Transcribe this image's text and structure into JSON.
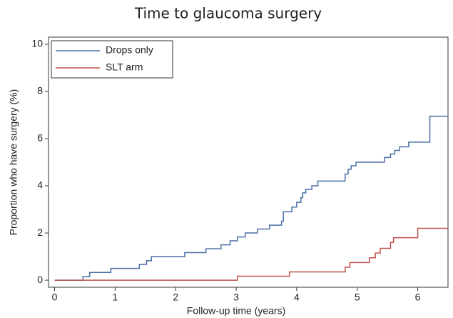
{
  "chart_data": {
    "type": "line",
    "step": true,
    "title": "Time to glaucoma surgery",
    "xlabel": "Follow-up time (years)",
    "ylabel": "Proportion who have surgery (%)",
    "xlim": [
      -0.1,
      6.5
    ],
    "ylim": [
      -0.3,
      10.3
    ],
    "xticks": [
      0,
      1,
      2,
      3,
      4,
      5,
      6
    ],
    "yticks": [
      0,
      2,
      4,
      6,
      8,
      10
    ],
    "grid": false,
    "legend": "upper left",
    "series": [
      {
        "name": "Drops only",
        "color": "#4a6fa5",
        "x": [
          0,
          0.47,
          0.58,
          0.93,
          1.4,
          1.52,
          1.6,
          2.15,
          2.5,
          2.75,
          2.9,
          3.02,
          3.15,
          3.35,
          3.55,
          3.75,
          3.78,
          3.92,
          4.0,
          4.07,
          4.1,
          4.15,
          4.25,
          4.35,
          4.8,
          4.85,
          4.9,
          4.98,
          5.45,
          5.55,
          5.62,
          5.7,
          5.85,
          6.2,
          6.5
        ],
        "values": [
          0,
          0.15,
          0.33,
          0.5,
          0.67,
          0.83,
          1.0,
          1.17,
          1.33,
          1.5,
          1.67,
          1.83,
          2.0,
          2.17,
          2.33,
          2.5,
          2.9,
          3.1,
          3.3,
          3.5,
          3.7,
          3.85,
          4.0,
          4.2,
          4.5,
          4.7,
          4.85,
          5.0,
          5.2,
          5.35,
          5.5,
          5.65,
          5.85,
          6.95,
          6.95
        ]
      },
      {
        "name": "SLT arm",
        "color": "#c0504d",
        "x": [
          0,
          3.02,
          3.88,
          4.8,
          4.88,
          5.2,
          5.3,
          5.38,
          5.55,
          5.6,
          6.0,
          6.5
        ],
        "values": [
          0,
          0.17,
          0.35,
          0.55,
          0.75,
          0.95,
          1.15,
          1.35,
          1.6,
          1.8,
          2.2,
          2.2
        ]
      }
    ]
  }
}
